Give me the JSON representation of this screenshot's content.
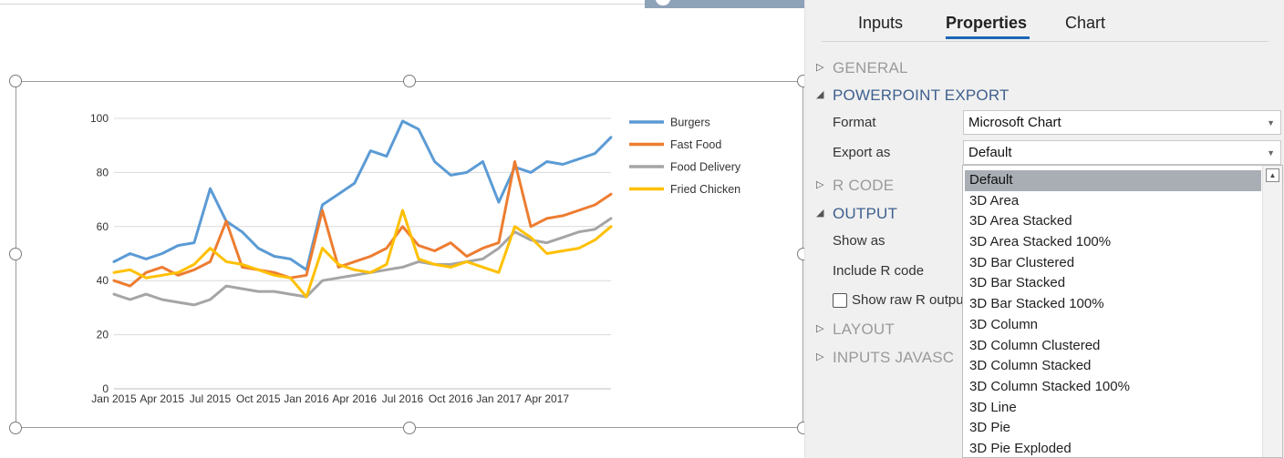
{
  "tabs": [
    {
      "label": "Inputs",
      "active": false
    },
    {
      "label": "Properties",
      "active": true
    },
    {
      "label": "Chart",
      "active": false
    }
  ],
  "sections": {
    "general": "GENERAL",
    "powerpoint_export": "POWERPOINT EXPORT",
    "r_code": "R CODE",
    "output": "OUTPUT",
    "layout": "LAYOUT",
    "inputs_javascript": "INPUTS JAVASC"
  },
  "powerpoint_export": {
    "format_label": "Format",
    "format_value": "Microsoft Chart",
    "export_as_label": "Export as",
    "export_as_value": "Default"
  },
  "output": {
    "show_as_label": "Show as",
    "include_r_code_label": "Include R code",
    "show_raw_label": "Show raw R outpu",
    "show_raw_checked": false
  },
  "export_as_options": [
    "Default",
    "3D Area",
    "3D Area Stacked",
    "3D Area Stacked 100%",
    "3D Bar Clustered",
    "3D Bar Stacked",
    "3D Bar Stacked 100%",
    "3D Column",
    "3D Column Clustered",
    "3D Column Stacked",
    "3D Column Stacked 100%",
    "3D Line",
    "3D Pie",
    "3D Pie Exploded"
  ],
  "export_as_selected": "Default",
  "colors": {
    "accent": "#1a66b5",
    "section_open": "#3e5f8e",
    "selection": "#a9aeb4"
  },
  "chart_data": {
    "type": "line",
    "title": "",
    "xlabel": "",
    "ylabel": "",
    "ylim": [
      0,
      100
    ],
    "yticks": [
      0,
      20,
      40,
      60,
      80,
      100
    ],
    "xticks": [
      "Jan 2015",
      "Apr 2015",
      "Jul 2015",
      "Oct 2015",
      "Jan 2016",
      "Apr 2016",
      "Jul 2016",
      "Oct 2016",
      "Jan 2017",
      "Apr 2017"
    ],
    "xrange": [
      "2015-01",
      "2017-08"
    ],
    "grid": true,
    "legend": "right",
    "x": [
      "2015-01",
      "2015-02",
      "2015-03",
      "2015-04",
      "2015-05",
      "2015-06",
      "2015-07",
      "2015-08",
      "2015-09",
      "2015-10",
      "2015-11",
      "2015-12",
      "2016-01",
      "2016-02",
      "2016-03",
      "2016-04",
      "2016-05",
      "2016-06",
      "2016-07",
      "2016-08",
      "2016-09",
      "2016-10",
      "2016-11",
      "2016-12",
      "2017-01",
      "2017-02",
      "2017-03",
      "2017-04",
      "2017-05",
      "2017-06",
      "2017-07",
      "2017-08"
    ],
    "series": [
      {
        "name": "Burgers",
        "color": "#5b9bd5",
        "values": [
          47,
          50,
          48,
          50,
          53,
          54,
          74,
          62,
          58,
          52,
          49,
          48,
          44,
          68,
          72,
          76,
          88,
          86,
          99,
          96,
          84,
          79,
          80,
          84,
          69,
          82,
          80,
          84,
          83,
          85,
          87,
          93
        ]
      },
      {
        "name": "Fast Food",
        "color": "#ed7d31",
        "values": [
          40,
          38,
          43,
          45,
          42,
          44,
          47,
          62,
          45,
          44,
          43,
          41,
          42,
          66,
          45,
          47,
          49,
          52,
          60,
          53,
          51,
          54,
          49,
          52,
          54,
          84,
          60,
          63,
          64,
          66,
          68,
          72
        ]
      },
      {
        "name": "Food Delivery",
        "color": "#a5a5a5",
        "values": [
          35,
          33,
          35,
          33,
          32,
          31,
          33,
          38,
          37,
          36,
          36,
          35,
          34,
          40,
          41,
          42,
          43,
          44,
          45,
          47,
          46,
          46,
          47,
          48,
          52,
          58,
          55,
          54,
          56,
          58,
          59,
          63
        ]
      },
      {
        "name": "Fried Chicken",
        "color": "#ffc000",
        "values": [
          43,
          44,
          41,
          42,
          43,
          46,
          52,
          47,
          46,
          44,
          42,
          41,
          34,
          52,
          46,
          44,
          43,
          46,
          66,
          48,
          46,
          45,
          47,
          45,
          43,
          60,
          56,
          50,
          51,
          52,
          55,
          60
        ]
      }
    ]
  }
}
